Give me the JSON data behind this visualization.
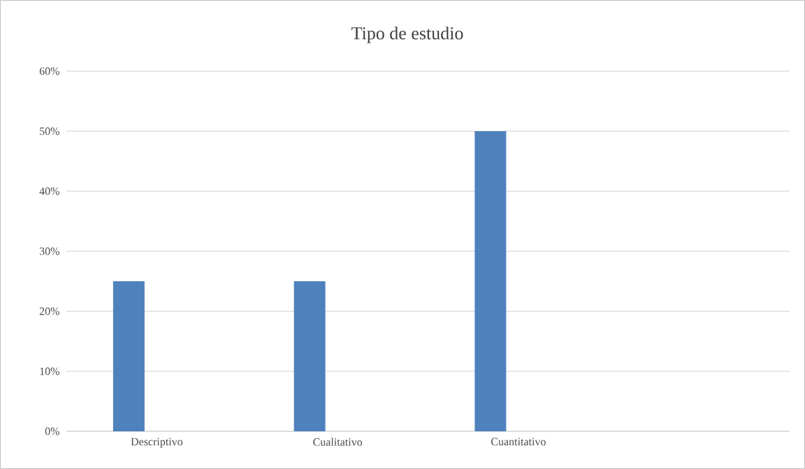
{
  "chart_data": {
    "type": "bar",
    "title": "Tipo de estudio",
    "categories": [
      "Descriptivo",
      "Cualitativo",
      "Cuantitativo",
      null
    ],
    "values": [
      25,
      25,
      50,
      null
    ],
    "color": "#4f81bd",
    "ylim": [
      0,
      60
    ],
    "yticks": [
      {
        "value": 0,
        "label": "0%"
      },
      {
        "value": 10,
        "label": "10%"
      },
      {
        "value": 20,
        "label": "20%"
      },
      {
        "value": 30,
        "label": "30%"
      },
      {
        "value": 40,
        "label": "40%"
      },
      {
        "value": 50,
        "label": "50%"
      },
      {
        "value": 60,
        "label": "60%"
      }
    ],
    "grid": "y"
  }
}
